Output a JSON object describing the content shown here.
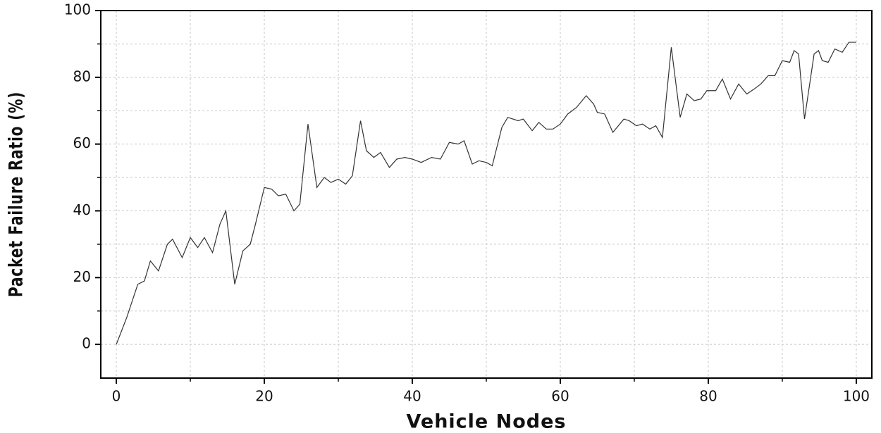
{
  "chart_data": {
    "type": "line",
    "xlabel": "Vehicle Nodes",
    "ylabel": "Packet Failure Ratio (%)",
    "x": [
      0,
      1.4,
      2.9,
      3.8,
      4.6,
      5.7,
      6.9,
      7.6,
      8.9,
      10,
      11,
      11.9,
      13,
      14,
      14.8,
      16,
      17.1,
      18.1,
      18.8,
      20,
      21,
      21.9,
      22.9,
      24,
      24.8,
      25.9,
      27.1,
      28.1,
      29,
      30,
      31,
      31.9,
      33,
      33.8,
      34.8,
      35.7,
      36.9,
      37.9,
      39,
      40,
      41.2,
      42.6,
      43.8,
      45,
      46.2,
      47,
      48.1,
      49,
      50,
      50.8,
      52.1,
      52.9,
      54.3,
      55,
      56.2,
      57.1,
      58.1,
      59,
      60,
      61,
      62.2,
      63.5,
      64.5,
      65,
      66,
      67.1,
      68.6,
      69.3,
      70.3,
      71.1,
      72.1,
      72.9,
      73.8,
      75,
      76.2,
      77.1,
      78.1,
      79,
      79.8,
      81,
      81.9,
      83,
      84.1,
      85.2,
      86.2,
      87.1,
      88.1,
      89,
      90,
      91,
      91.6,
      92.2,
      93,
      94.3,
      94.9,
      95.4,
      96.2,
      97.1,
      98.1,
      99,
      100
    ],
    "series": [
      {
        "name": "Packet Failure Ratio",
        "color": "#333333",
        "values": [
          0,
          8,
          18,
          19,
          25,
          22,
          30,
          31.5,
          26,
          32,
          29,
          32,
          27.5,
          36,
          40,
          18,
          28,
          30,
          36,
          47,
          46.5,
          44.5,
          45,
          40,
          42,
          66,
          47,
          50,
          48.5,
          49.5,
          48,
          50.5,
          67,
          58,
          56,
          57.5,
          53,
          55.5,
          56,
          55.5,
          54.5,
          56,
          55.5,
          60.5,
          60,
          61,
          54,
          55,
          54.5,
          53.5,
          65,
          68,
          67,
          67.5,
          64,
          66.5,
          64.5,
          64.5,
          66,
          69,
          71,
          74.5,
          72,
          69.5,
          69,
          63.5,
          67.5,
          67,
          65.5,
          66,
          64.5,
          65.5,
          62,
          89,
          68,
          75,
          73,
          73.5,
          76,
          76,
          79.5,
          73.5,
          78,
          75,
          76.5,
          78,
          80.5,
          80.5,
          85,
          84.5,
          88,
          87,
          67.5,
          87,
          88,
          85,
          84.5,
          88.5,
          87.5,
          90.5,
          90.5
        ]
      }
    ],
    "xlim": [
      -2.1,
      102.1
    ],
    "ylim": [
      -10.1,
      100
    ],
    "xticks": [
      0,
      20,
      40,
      60,
      80,
      100
    ],
    "yticks": [
      0,
      20,
      40,
      60,
      80,
      100
    ],
    "xminorticks": [
      10,
      30,
      50,
      70,
      90
    ],
    "yminorticks": [
      10,
      30,
      50,
      70,
      90
    ],
    "grid": true
  }
}
